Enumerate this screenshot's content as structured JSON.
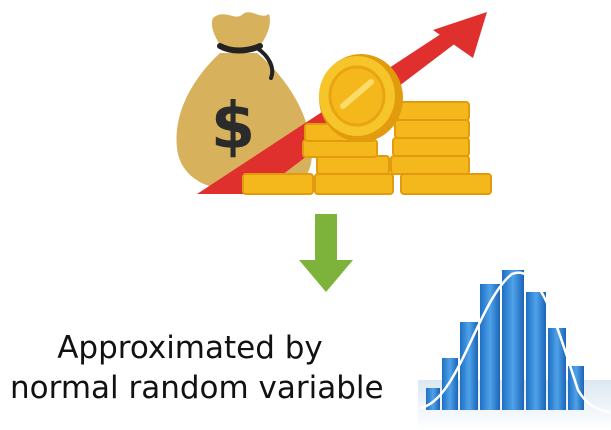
{
  "caption": {
    "line1": "Approximated by",
    "line2": "normal random variable"
  },
  "illustration": {
    "bag_symbol": "$",
    "icons": [
      "money-bag-icon",
      "trend-up-arrow-icon",
      "gold-coin-icon",
      "coin-stack-icon",
      "down-arrow-icon",
      "histogram-normal-curve-icon"
    ]
  },
  "colors": {
    "bag": "#D7B15C",
    "bag_tie": "#222222",
    "trend_arrow": "#E0302D",
    "coin": "#F4B81C",
    "coin_dark": "#E19B0C",
    "down_arrow": "#7DB33A",
    "histogram_bar": "#2F80D0",
    "curve": "#FFFFFF"
  }
}
